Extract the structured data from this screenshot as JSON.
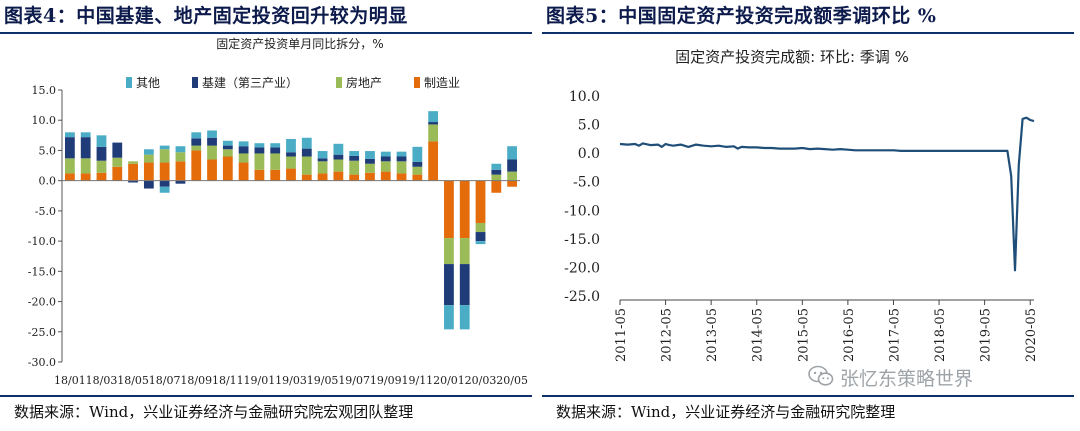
{
  "figures": {
    "left": {
      "title": "图表4：中国基建、地产固定投资回升较为明显",
      "source": "数据来源：Wind，兴业证券经济与金融研究院宏观团队整理"
    },
    "right": {
      "title": "图表5：中国固定资产投资完成额季调环比  %",
      "source": "数据来源：Wind，兴业证券经济与金融研究院整理"
    }
  },
  "watermark": {
    "text": "张忆东策略世界",
    "icon": "wechat-icon"
  },
  "colors": {
    "other": "#4bacc6",
    "infra": "#1f3c78",
    "realestate": "#9bbb59",
    "manufacturing": "#e46c0a",
    "line": "#1f4e79",
    "rule": "#10306a"
  },
  "chart_data": [
    {
      "type": "bar",
      "stacked": true,
      "title": "固定资产投资单月同比拆分，%",
      "ylim": [
        -30,
        15
      ],
      "yticks": [
        "15.0",
        "10.0",
        "5.0",
        "0.0",
        "-5.0",
        "-10.0",
        "-15.0",
        "-20.0",
        "-25.0",
        "-30.0"
      ],
      "ytick_values": [
        15,
        10,
        5,
        0,
        -5,
        -10,
        -15,
        -20,
        -25,
        -30
      ],
      "categories": [
        "18/01",
        "18/02",
        "18/03",
        "18/04",
        "18/05",
        "18/06",
        "18/07",
        "18/08",
        "18/09",
        "18/10",
        "18/11",
        "18/12",
        "19/01",
        "19/02",
        "19/03",
        "19/04",
        "19/05",
        "19/06",
        "19/07",
        "19/08",
        "19/09",
        "19/10",
        "19/11",
        "19/12",
        "20/01",
        "20/02",
        "20/03",
        "20/04",
        "20/05"
      ],
      "tick_labels": [
        "18/01",
        "18/03",
        "18/05",
        "18/07",
        "18/09",
        "18/11",
        "19/01",
        "19/03",
        "19/05",
        "19/07",
        "19/09",
        "19/11",
        "20/01",
        "20/03",
        "20/05"
      ],
      "legend_position": "top",
      "series": [
        {
          "name": "制造业",
          "key": "manufacturing",
          "values": [
            1.2,
            1.2,
            1.3,
            2.3,
            2.8,
            3.0,
            3.0,
            3.2,
            5.0,
            3.5,
            4.0,
            3.0,
            1.8,
            1.8,
            2.0,
            1.0,
            1.2,
            1.5,
            1.0,
            1.3,
            1.5,
            1.2,
            1.0,
            6.5,
            -9.5,
            -9.5,
            -7.0,
            -2.0,
            -1.0
          ]
        },
        {
          "name": "房地产",
          "key": "realestate",
          "values": [
            2.5,
            2.5,
            2.0,
            1.5,
            0.4,
            1.3,
            2.2,
            1.5,
            0.8,
            2.3,
            1.2,
            1.5,
            2.7,
            2.7,
            2.0,
            3.0,
            2.0,
            2.0,
            2.3,
            1.5,
            1.7,
            2.0,
            1.3,
            2.8,
            -4.3,
            -4.3,
            -1.5,
            1.0,
            1.5
          ]
        },
        {
          "name": "基建（第三产业）",
          "key": "infra",
          "values": [
            3.5,
            3.5,
            2.3,
            2.5,
            -0.3,
            -1.3,
            -1.0,
            -0.5,
            1.2,
            1.3,
            0.6,
            1.2,
            1.0,
            1.0,
            0.7,
            1.3,
            0.5,
            0.8,
            0.8,
            0.8,
            0.8,
            0.8,
            0.8,
            0.4,
            -6.8,
            -6.8,
            -1.5,
            0.8,
            2.0
          ]
        },
        {
          "name": "其他",
          "key": "other",
          "values": [
            0.8,
            0.8,
            1.9,
            0.0,
            0.0,
            0.9,
            0.6,
            1.0,
            1.0,
            1.2,
            0.8,
            0.8,
            0.7,
            0.7,
            2.2,
            1.8,
            1.2,
            1.8,
            0.8,
            1.3,
            0.8,
            0.8,
            2.5,
            1.8,
            -4.0,
            -4.0,
            -0.5,
            1.0,
            2.2
          ]
        },
        {
          "name": "其他(负)",
          "key": "other",
          "values": [
            0,
            0,
            0,
            0,
            0,
            0,
            -1.0,
            0,
            0,
            0,
            0,
            0,
            0,
            0,
            0,
            0,
            0,
            0,
            0,
            0,
            0,
            0,
            0,
            0,
            0,
            0,
            0,
            0,
            0
          ]
        }
      ],
      "legend": [
        "其他",
        "基建（第三产业）",
        "房地产",
        "制造业"
      ],
      "legend_keys": [
        "other",
        "infra",
        "realestate",
        "manufacturing"
      ]
    },
    {
      "type": "line",
      "title": "固定资产投资完成额: 环比: 季调  %",
      "ylim": [
        -25,
        10
      ],
      "yticks": [
        "10.0",
        "5.0",
        "0.0",
        "-5.0",
        "-10.0",
        "-15.0",
        "-20.0",
        "-25.0"
      ],
      "ytick_values": [
        10,
        5,
        0,
        -5,
        -10,
        -15,
        -20,
        -25
      ],
      "xlim": [
        0,
        109
      ],
      "tick_labels": [
        "2011-05",
        "2012-05",
        "2013-05",
        "2014-05",
        "2015-05",
        "2016-05",
        "2017-05",
        "2018-05",
        "2019-05",
        "2020-05"
      ],
      "tick_positions": [
        0,
        12,
        24,
        36,
        48,
        60,
        72,
        84,
        96,
        108
      ],
      "x": [
        0,
        2,
        4,
        5,
        6,
        8,
        10,
        11,
        12,
        13,
        14,
        16,
        18,
        20,
        22,
        24,
        26,
        28,
        30,
        31,
        32,
        34,
        36,
        38,
        40,
        42,
        44,
        46,
        48,
        50,
        52,
        54,
        56,
        58,
        60,
        62,
        64,
        66,
        68,
        70,
        72,
        74,
        76,
        78,
        80,
        82,
        84,
        86,
        88,
        90,
        92,
        94,
        96,
        98,
        100,
        102,
        103,
        104,
        105,
        106,
        107,
        108,
        109
      ],
      "y": [
        1.6,
        1.5,
        1.6,
        1.3,
        1.7,
        1.4,
        1.5,
        1.1,
        1.6,
        1.4,
        1.3,
        1.5,
        1.1,
        1.5,
        1.3,
        1.2,
        1.3,
        1.1,
        1.2,
        0.8,
        1.1,
        1.0,
        1.0,
        0.9,
        0.9,
        0.8,
        0.8,
        0.8,
        0.9,
        0.7,
        0.8,
        0.7,
        0.6,
        0.7,
        0.6,
        0.5,
        0.5,
        0.5,
        0.5,
        0.5,
        0.5,
        0.4,
        0.4,
        0.4,
        0.4,
        0.4,
        0.4,
        0.4,
        0.4,
        0.4,
        0.4,
        0.4,
        0.4,
        0.4,
        0.4,
        0.4,
        -4.0,
        -20.5,
        -2.0,
        6.0,
        6.2,
        5.8,
        5.6
      ]
    }
  ]
}
